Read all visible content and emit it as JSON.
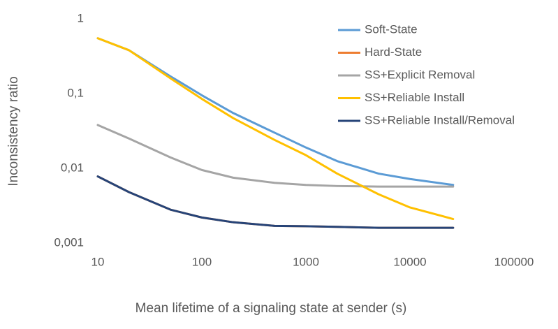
{
  "chart_data": {
    "type": "line",
    "x_label": "Mean lifetime of a signaling state at sender (s)",
    "y_label": "Inconsistency ratio",
    "x": [
      10,
      20,
      50,
      100,
      200,
      500,
      1000,
      2000,
      5000,
      10000,
      26000
    ],
    "series": [
      {
        "name": "Soft-State",
        "color": "#5b9bd5",
        "values": [
          0.55,
          0.38,
          0.17,
          0.095,
          0.055,
          0.03,
          0.019,
          0.0125,
          0.0085,
          0.0072,
          0.006
        ]
      },
      {
        "name": "Hard-State",
        "color": "#ed7d31",
        "values": [
          0.0078,
          0.0048,
          0.0028,
          0.0022,
          0.0019,
          0.0017,
          0.00168,
          0.00165,
          0.0016,
          0.0016,
          0.0016
        ]
      },
      {
        "name": "SS+Explicit Removal",
        "color": "#a5a5a5",
        "values": [
          0.038,
          0.025,
          0.014,
          0.0095,
          0.0075,
          0.0064,
          0.006,
          0.0058,
          0.0057,
          0.0057,
          0.0057
        ]
      },
      {
        "name": "SS+Reliable Install",
        "color": "#ffc000",
        "values": [
          0.55,
          0.38,
          0.16,
          0.085,
          0.047,
          0.024,
          0.015,
          0.0085,
          0.0045,
          0.003,
          0.0021
        ]
      },
      {
        "name": "SS+Reliable Install/Removal",
        "color": "#264478",
        "values": [
          0.0078,
          0.0048,
          0.0028,
          0.0022,
          0.0019,
          0.0017,
          0.00168,
          0.00165,
          0.0016,
          0.0016,
          0.0016
        ]
      }
    ],
    "xscale": "log",
    "yscale": "log",
    "xlim": [
      10,
      100000
    ],
    "ylim": [
      0.001,
      1
    ],
    "xticks": [
      10,
      100,
      1000,
      10000,
      100000
    ],
    "yticks": [
      {
        "value": 0.001,
        "label": "0,001"
      },
      {
        "value": 0.01,
        "label": "0,01"
      },
      {
        "value": 0.1,
        "label": "0,1"
      },
      1
    ],
    "grid": false,
    "legend": "top-right"
  }
}
